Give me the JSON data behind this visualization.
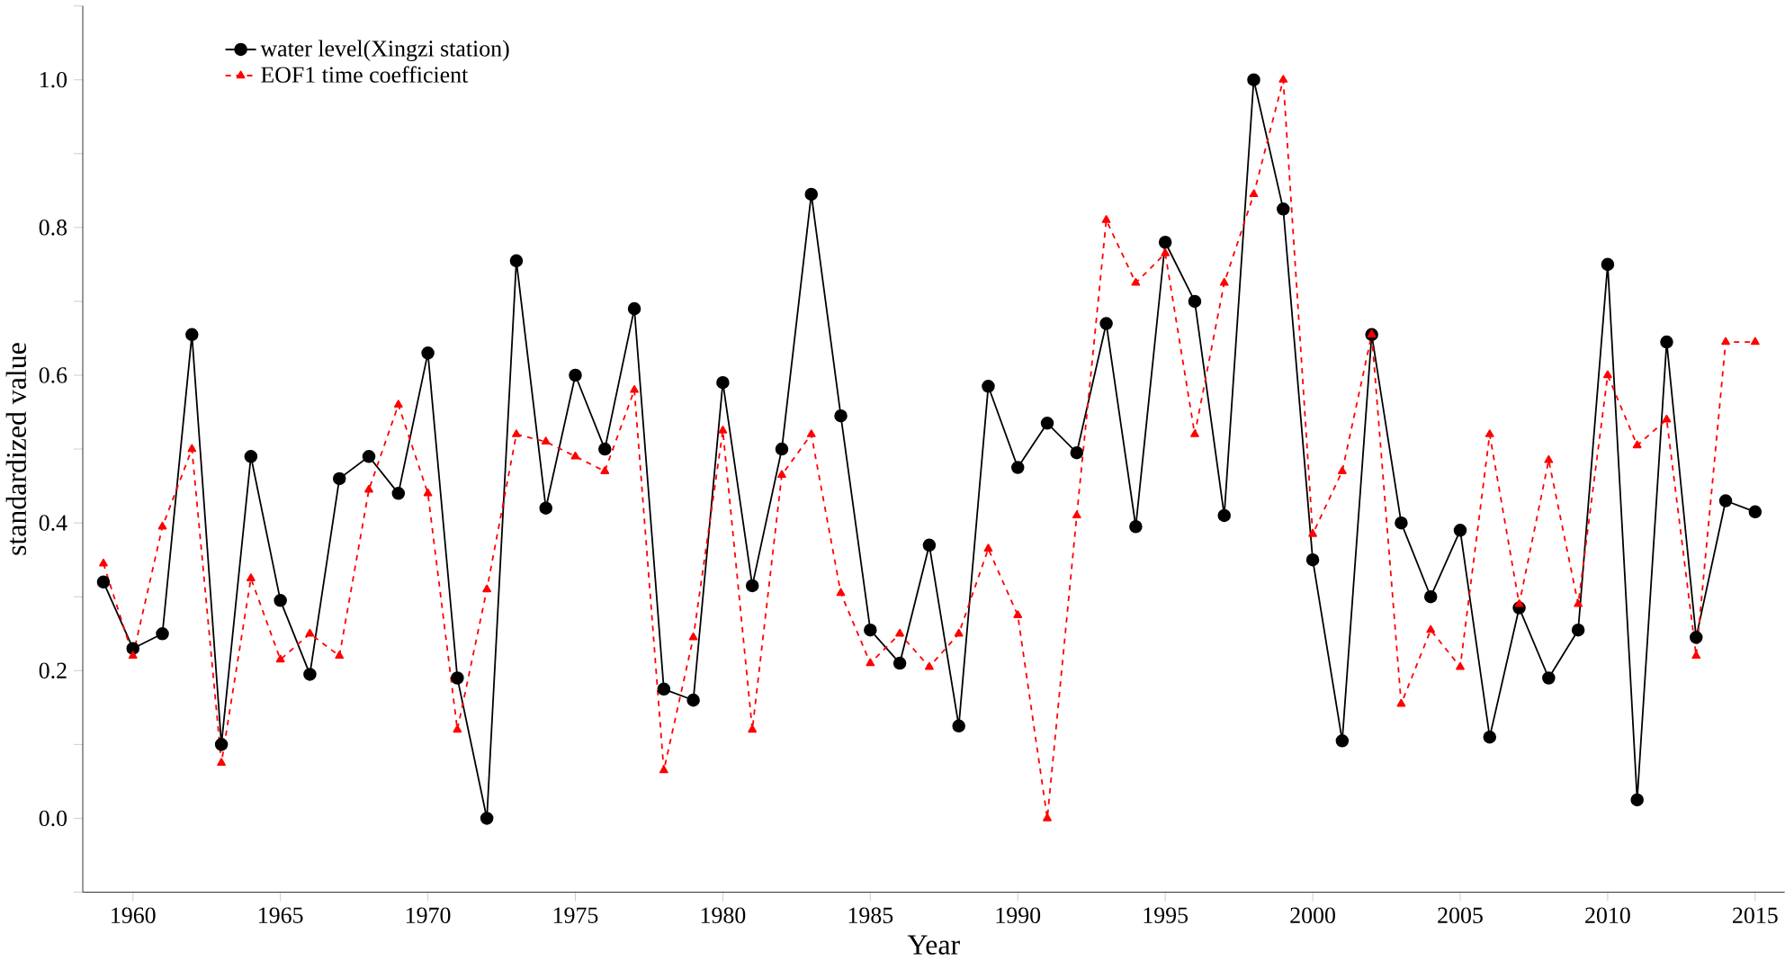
{
  "chart_data": {
    "type": "line",
    "xlabel": "Year",
    "ylabel": "standardized value",
    "x": [
      1959,
      1960,
      1961,
      1962,
      1963,
      1964,
      1965,
      1966,
      1967,
      1968,
      1969,
      1970,
      1971,
      1972,
      1973,
      1974,
      1975,
      1976,
      1977,
      1978,
      1979,
      1980,
      1981,
      1982,
      1983,
      1984,
      1985,
      1986,
      1987,
      1988,
      1989,
      1990,
      1991,
      1992,
      1993,
      1994,
      1995,
      1996,
      1997,
      1998,
      1999,
      2000,
      2001,
      2002,
      2003,
      2004,
      2005,
      2006,
      2007,
      2008,
      2009,
      2010,
      2011,
      2012,
      2013,
      2014,
      2015
    ],
    "series": [
      {
        "name": "water level(Xingzi station)",
        "color": "#000000",
        "marker": "circle",
        "line_style": "solid",
        "values": [
          0.32,
          0.23,
          0.25,
          0.655,
          0.1,
          0.49,
          0.295,
          0.195,
          0.46,
          0.49,
          0.44,
          0.63,
          0.19,
          0.0,
          0.755,
          0.42,
          0.6,
          0.5,
          0.69,
          0.175,
          0.16,
          0.59,
          0.315,
          0.5,
          0.845,
          0.545,
          0.255,
          0.21,
          0.37,
          0.125,
          0.585,
          0.475,
          0.535,
          0.495,
          0.67,
          0.395,
          0.78,
          0.7,
          0.41,
          1.0,
          0.825,
          0.35,
          0.105,
          0.655,
          0.4,
          0.3,
          0.39,
          0.11,
          0.285,
          0.19,
          0.255,
          0.75,
          0.025,
          0.645,
          0.245,
          0.43,
          0.415
        ]
      },
      {
        "name": "EOF1 time coefficient",
        "color": "#ff0000",
        "marker": "triangle",
        "line_style": "dashed",
        "values": [
          0.345,
          0.22,
          0.395,
          0.5,
          0.075,
          0.325,
          0.215,
          0.25,
          0.22,
          0.445,
          0.56,
          0.44,
          0.12,
          0.31,
          0.52,
          0.51,
          0.49,
          0.47,
          0.58,
          0.065,
          0.245,
          0.525,
          0.12,
          0.465,
          0.52,
          0.305,
          0.21,
          0.25,
          0.205,
          0.25,
          0.365,
          0.275,
          0.0,
          0.41,
          0.81,
          0.725,
          0.765,
          0.52,
          0.725,
          0.845,
          1.0,
          0.385,
          0.47,
          0.655,
          0.155,
          0.255,
          0.205,
          0.52,
          0.29,
          0.485,
          0.29,
          0.6,
          0.505,
          0.54,
          0.22,
          0.645,
          0.645
        ]
      }
    ],
    "xlim": [
      1958.3,
      2016
    ],
    "ylim": [
      -0.1,
      1.1
    ],
    "xticks": [
      1960,
      1965,
      1970,
      1975,
      1980,
      1985,
      1990,
      1995,
      2000,
      2005,
      2010,
      2015
    ],
    "yticks": [
      {
        "value": -0.1,
        "label": null
      },
      {
        "value": 0.0,
        "label": "0.0"
      },
      {
        "value": 0.1,
        "label": null
      },
      {
        "value": 0.2,
        "label": "0.2"
      },
      {
        "value": 0.3,
        "label": null
      },
      {
        "value": 0.4,
        "label": "0.4"
      },
      {
        "value": 0.5,
        "label": null
      },
      {
        "value": 0.6,
        "label": "0.6"
      },
      {
        "value": 0.7,
        "label": null
      },
      {
        "value": 0.8,
        "label": "0.8"
      },
      {
        "value": 0.9,
        "label": null
      },
      {
        "value": 1.0,
        "label": "1.0"
      },
      {
        "value": 1.1,
        "label": null
      }
    ],
    "grid": false,
    "legend": "top left"
  }
}
